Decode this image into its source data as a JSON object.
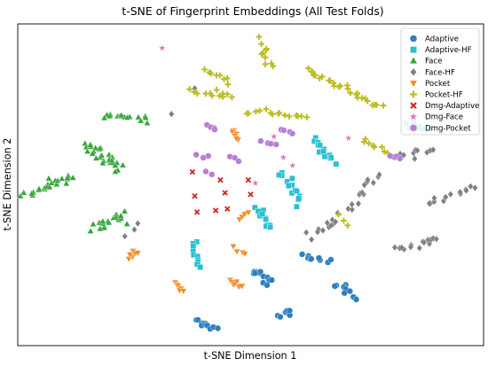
{
  "chart_data": {
    "type": "scatter",
    "title": "t-SNE of Fingerprint Embeddings (All Test Folds)",
    "xlabel": "t-SNE Dimension 1",
    "ylabel": "t-SNE Dimension 2",
    "xlim": [
      0,
      100
    ],
    "ylim": [
      0,
      100
    ],
    "grid": false,
    "show_ticks": false,
    "legend_position": "top-right",
    "series": [
      {
        "name": "Adaptive",
        "marker": "circle",
        "color": "#2e7fc0",
        "clusters": [
          {
            "x": [
              38.5,
              42.5
            ],
            "y": [
              7.5,
              5.5
            ],
            "n": 11,
            "spread": 0.9
          },
          {
            "x": [
              55.5,
              59.0
            ],
            "y": [
              9.0,
              11.0
            ],
            "n": 9,
            "spread": 0.9
          },
          {
            "x": [
              50.5,
              54.5
            ],
            "y": [
              24.0,
              19.0
            ],
            "n": 12,
            "spread": 1.1
          },
          {
            "x": [
              61.5,
              66.5
            ],
            "y": [
              28.0,
              26.0
            ],
            "n": 9,
            "spread": 0.9
          },
          {
            "x": [
              68.5,
              73.0
            ],
            "y": [
              19.0,
              15.0
            ],
            "n": 10,
            "spread": 1.0
          }
        ]
      },
      {
        "name": "Adaptive-HF",
        "marker": "square",
        "color": "#26c1d3",
        "clusters": [
          {
            "x": [
              57.0,
              60.5
            ],
            "y": [
              53.5,
              44.0
            ],
            "n": 16,
            "spread": 1.2
          },
          {
            "x": [
              51.5,
              54.5
            ],
            "y": [
              42.5,
              36.0
            ],
            "n": 12,
            "spread": 1.0
          },
          {
            "x": [
              37.5,
              38.5
            ],
            "y": [
              32.5,
              24.0
            ],
            "n": 10,
            "spread": 0.8
          },
          {
            "x": [
              64.0,
              67.5
            ],
            "y": [
              63.5,
              57.0
            ],
            "n": 14,
            "spread": 1.2
          },
          {
            "x": [
              84.0,
              87.5
            ],
            "y": [
              69.5,
              67.0
            ],
            "n": 10,
            "spread": 1.0
          }
        ]
      },
      {
        "name": "Face",
        "marker": "triangle",
        "color": "#34a639",
        "clusters": [
          {
            "x": [
              18.5,
              27.5
            ],
            "y": [
              72.0,
              70.0
            ],
            "n": 16,
            "spread": 1.3
          },
          {
            "x": [
              14.0,
              22.5
            ],
            "y": [
              63.0,
              55.0
            ],
            "n": 30,
            "spread": 2.0
          },
          {
            "x": [
              2.0,
              12.0
            ],
            "y": [
              47.0,
              53.0
            ],
            "n": 24,
            "spread": 1.2
          },
          {
            "x": [
              16.0,
              23.0
            ],
            "y": [
              37.0,
              40.0
            ],
            "n": 18,
            "spread": 1.4
          }
        ]
      },
      {
        "name": "Face-HF",
        "marker": "diamond",
        "color": "#808080",
        "clusters": [
          {
            "x": [
              88.0,
              98.0
            ],
            "y": [
              44.0,
              49.5
            ],
            "n": 14,
            "spread": 0.9
          },
          {
            "x": [
              81.0,
              90.0
            ],
            "y": [
              30.0,
              33.0
            ],
            "n": 14,
            "spread": 1.2
          },
          {
            "x": [
              71.5,
              77.0
            ],
            "y": [
              42.0,
              54.0
            ],
            "n": 14,
            "spread": 1.3
          },
          {
            "x": [
              63.5,
              69.0
            ],
            "y": [
              34.5,
              40.0
            ],
            "n": 12,
            "spread": 1.3
          },
          {
            "x": [
              80.0,
              89.0
            ],
            "y": [
              58.5,
              60.5
            ],
            "n": 12,
            "spread": 0.9
          },
          {
            "x": [
              25.0,
              26.0
            ],
            "y": [
              36.0,
              38.0
            ],
            "n": 2,
            "spread": 0.4
          },
          {
            "x": [
              33.0,
              33.0
            ],
            "y": [
              72.0,
              72.0
            ],
            "n": 1,
            "spread": 0
          },
          {
            "x": [
              38.0,
              38.0
            ],
            "y": [
              80.0,
              80.0
            ],
            "n": 1,
            "spread": 0
          },
          {
            "x": [
              23.0,
              23.0
            ],
            "y": [
              34.0,
              34.0
            ],
            "n": 1,
            "spread": 0
          }
        ]
      },
      {
        "name": "Pocket",
        "marker": "triangle-down",
        "color": "#f28c28",
        "clusters": [
          {
            "x": [
              46.0,
              47.5
            ],
            "y": [
              67.0,
              64.0
            ],
            "n": 8,
            "spread": 0.6
          },
          {
            "x": [
              47.5,
              49.5
            ],
            "y": [
              39.0,
              42.0
            ],
            "n": 4,
            "spread": 0.5
          },
          {
            "x": [
              46.5,
              48.5
            ],
            "y": [
              31.0,
              28.0
            ],
            "n": 4,
            "spread": 0.5
          },
          {
            "x": [
              24.0,
              25.5
            ],
            "y": [
              27.5,
              29.5
            ],
            "n": 8,
            "spread": 0.7
          },
          {
            "x": [
              34.0,
              35.5
            ],
            "y": [
              19.0,
              17.0
            ],
            "n": 8,
            "spread": 0.6
          },
          {
            "x": [
              45.5,
              48.0
            ],
            "y": [
              20.0,
              18.5
            ],
            "n": 8,
            "spread": 0.6
          }
        ]
      },
      {
        "name": "Pocket-HF",
        "marker": "plus",
        "color": "#bcbd22",
        "clusters": [
          {
            "x": [
              51.5,
              54.5
            ],
            "y": [
              95.0,
              86.5
            ],
            "n": 10,
            "spread": 0.9
          },
          {
            "x": [
              40.0,
              46.0
            ],
            "y": [
              85.0,
              82.0
            ],
            "n": 8,
            "spread": 0.8
          },
          {
            "x": [
              37.0,
              44.0
            ],
            "y": [
              79.5,
              77.0
            ],
            "n": 8,
            "spread": 0.6
          },
          {
            "x": [
              49.0,
              53.0
            ],
            "y": [
              72.0,
              73.5
            ],
            "n": 5,
            "spread": 0.5
          },
          {
            "x": [
              54.0,
              62.0
            ],
            "y": [
              72.5,
              71.0
            ],
            "n": 10,
            "spread": 0.7
          },
          {
            "x": [
              62.0,
              78.0
            ],
            "y": [
              86.0,
              74.0
            ],
            "n": 26,
            "spread": 0.9
          },
          {
            "x": [
              74.0,
              79.0
            ],
            "y": [
              64.0,
              60.0
            ],
            "n": 8,
            "spread": 0.7
          },
          {
            "x": [
              43.0,
              46.0
            ],
            "y": [
              79.0,
              77.5
            ],
            "n": 4,
            "spread": 0.6
          },
          {
            "x": [
              69.0,
              70.5
            ],
            "y": [
              40.5,
              37.0
            ],
            "n": 3,
            "spread": 0.5
          }
        ]
      },
      {
        "name": "Dmg-Adaptive",
        "marker": "x",
        "color": "#d62728",
        "clusters": [
          {
            "x": [
              37.5,
              37.5
            ],
            "y": [
              54.0,
              54.0
            ],
            "n": 1,
            "spread": 0
          },
          {
            "x": [
              43.5,
              43.5
            ],
            "y": [
              51.5,
              51.5
            ],
            "n": 1,
            "spread": 0
          },
          {
            "x": [
              50.0,
              50.0
            ],
            "y": [
              47.0,
              47.0
            ],
            "n": 1,
            "spread": 0
          },
          {
            "x": [
              42.5,
              42.5
            ],
            "y": [
              42.0,
              42.0
            ],
            "n": 1,
            "spread": 0
          },
          {
            "x": [
              38.0,
              38.0
            ],
            "y": [
              46.5,
              46.5
            ],
            "n": 1,
            "spread": 0
          },
          {
            "x": [
              44.5,
              44.5
            ],
            "y": [
              47.5,
              47.5
            ],
            "n": 1,
            "spread": 0
          },
          {
            "x": [
              38.5,
              38.5
            ],
            "y": [
              41.5,
              41.5
            ],
            "n": 1,
            "spread": 0
          },
          {
            "x": [
              45.0,
              45.0
            ],
            "y": [
              42.5,
              42.5
            ],
            "n": 1,
            "spread": 0
          },
          {
            "x": [
              49.5,
              49.5
            ],
            "y": [
              51.5,
              51.5
            ],
            "n": 1,
            "spread": 0
          }
        ]
      },
      {
        "name": "Dmg-Face",
        "marker": "star",
        "color": "#e377c2",
        "clusters": [
          {
            "x": [
              31.0,
              31.0
            ],
            "y": [
              92.5,
              92.5
            ],
            "n": 1,
            "spread": 0
          },
          {
            "x": [
              57.0,
              57.0
            ],
            "y": [
              58.5,
              58.5
            ],
            "n": 1,
            "spread": 0
          },
          {
            "x": [
              59.0,
              59.0
            ],
            "y": [
              56.0,
              56.0
            ],
            "n": 1,
            "spread": 0
          },
          {
            "x": [
              51.0,
              51.0
            ],
            "y": [
              50.5,
              50.5
            ],
            "n": 1,
            "spread": 0
          },
          {
            "x": [
              55.0,
              55.0
            ],
            "y": [
              65.0,
              65.0
            ],
            "n": 1,
            "spread": 0
          },
          {
            "x": [
              71.0,
              71.0
            ],
            "y": [
              64.5,
              64.5
            ],
            "n": 1,
            "spread": 0
          }
        ]
      },
      {
        "name": "Dmg-Pocket",
        "marker": "circle",
        "color": "#b67fd6",
        "clusters": [
          {
            "x": [
              40.5,
              42.5
            ],
            "y": [
              68.5,
              67.0
            ],
            "n": 4,
            "spread": 0.5
          },
          {
            "x": [
              38.0,
              41.0
            ],
            "y": [
              59.0,
              58.5
            ],
            "n": 3,
            "spread": 0.4
          },
          {
            "x": [
              45.5,
              48.0
            ],
            "y": [
              58.5,
              57.5
            ],
            "n": 3,
            "spread": 0.4
          },
          {
            "x": [
              52.5,
              55.5
            ],
            "y": [
              63.5,
              62.5
            ],
            "n": 4,
            "spread": 0.4
          },
          {
            "x": [
              56.5,
              59.0
            ],
            "y": [
              67.5,
              66.0
            ],
            "n": 4,
            "spread": 0.4
          },
          {
            "x": [
              80.0,
              82.0
            ],
            "y": [
              59.0,
              58.0
            ],
            "n": 3,
            "spread": 0.4
          },
          {
            "x": [
              40.5,
              41.5
            ],
            "y": [
              54.0,
              53.0
            ],
            "n": 2,
            "spread": 0.3
          }
        ]
      }
    ]
  }
}
